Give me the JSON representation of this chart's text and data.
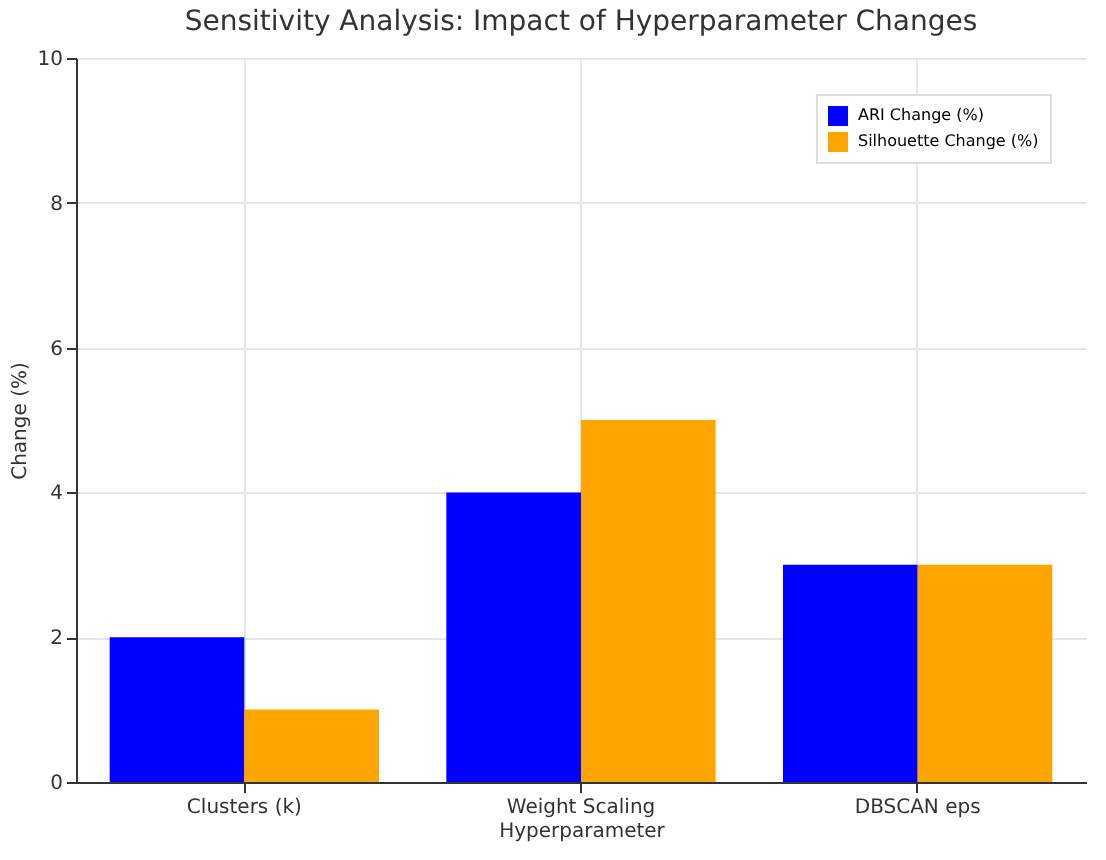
{
  "chart_data": {
    "type": "bar",
    "title": "Sensitivity Analysis: Impact of Hyperparameter Changes",
    "xlabel": "Hyperparameter",
    "ylabel": "Change (%)",
    "categories": [
      "Clusters (k)",
      "Weight Scaling",
      "DBSCAN eps"
    ],
    "series": [
      {
        "name": "ARI Change (%)",
        "color": "#0000ff",
        "values": [
          2,
          4,
          3
        ]
      },
      {
        "name": "Silhouette Change (%)",
        "color": "#ffa500",
        "values": [
          1,
          5,
          3
        ]
      }
    ],
    "ylim": [
      0,
      10
    ],
    "yticks": [
      0,
      2,
      4,
      6,
      8,
      10
    ],
    "grid": true,
    "legend": "top right"
  }
}
